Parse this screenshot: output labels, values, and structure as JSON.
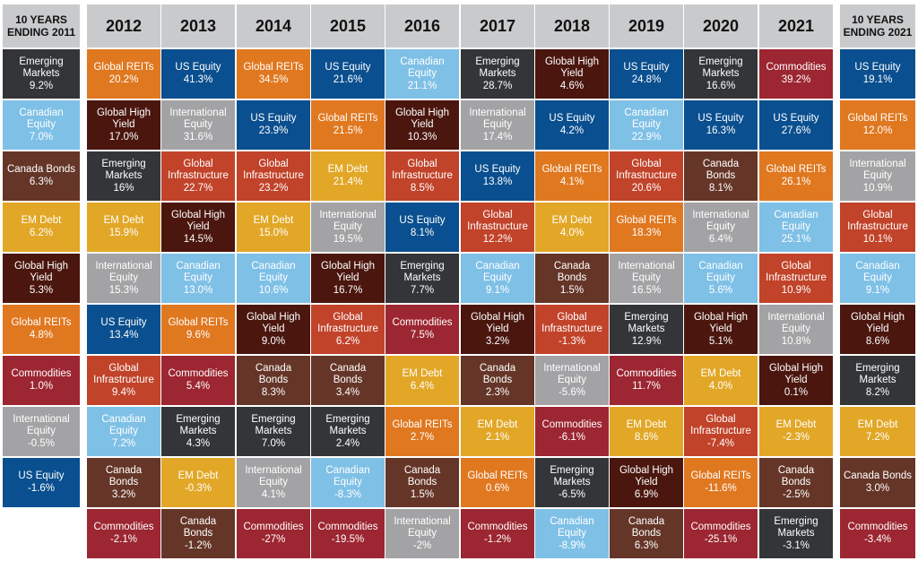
{
  "colors": {
    "Global REITs": "#e07820",
    "US Equity": "#0a4f8f",
    "Canadian Equity": "#7fc0e6",
    "Emerging Markets": "#333538",
    "Global High Yield": "#4a160e",
    "Commodities": "#9c2631",
    "International Equity": "#a3a3a5",
    "Global Infrastructure": "#c1432a",
    "Canada Bonds": "#653628",
    "EM Debt": "#e2a727"
  },
  "chart_data": {
    "type": "table",
    "summary_start": {
      "header": "10 YEARS ENDING 2011",
      "cells": [
        {
          "asset": "Emerging Markets",
          "label": "Emerging Markets",
          "value": "9.2%"
        },
        {
          "asset": "Canadian Equity",
          "label": "Canadian Equity",
          "value": "7.0%"
        },
        {
          "asset": "Canada Bonds",
          "label": "Canada Bonds",
          "value": "6.3%"
        },
        {
          "asset": "EM Debt",
          "label": "EM Debt",
          "value": "6.2%"
        },
        {
          "asset": "Global High Yield",
          "label": "Global High Yield",
          "value": "5.3%"
        },
        {
          "asset": "Global REITs",
          "label": "Global REITs",
          "value": "4.8%"
        },
        {
          "asset": "Commodities",
          "label": "Commodities",
          "value": "1.0%"
        },
        {
          "asset": "International Equity",
          "label": "International Equity",
          "value": "-0.5%"
        },
        {
          "asset": "US Equity",
          "label": "US Equity",
          "value": "-1.6%"
        }
      ]
    },
    "years": [
      {
        "year": "2012",
        "cells": [
          {
            "asset": "Global REITs",
            "label": "Global REITs",
            "value": "20.2%"
          },
          {
            "asset": "Global High Yield",
            "label": "Global High Yield",
            "value": "17.0%"
          },
          {
            "asset": "Emerging Markets",
            "label": "Emerging Markets",
            "value": "16%"
          },
          {
            "asset": "EM Debt",
            "label": "EM Debt",
            "value": "15.9%"
          },
          {
            "asset": "International Equity",
            "label": "International Equity",
            "value": "15.3%"
          },
          {
            "asset": "US Equity",
            "label": "US Equity",
            "value": "13.4%"
          },
          {
            "asset": "Global Infrastructure",
            "label": "Global Infrastructure",
            "value": "9.4%"
          },
          {
            "asset": "Canadian Equity",
            "label": "Canadian Equity",
            "value": "7.2%"
          },
          {
            "asset": "Canada Bonds",
            "label": "Canada Bonds",
            "value": "3.2%"
          },
          {
            "asset": "Commodities",
            "label": "Commodities",
            "value": "-2.1%"
          }
        ]
      },
      {
        "year": "2013",
        "cells": [
          {
            "asset": "US Equity",
            "label": "US Equity",
            "value": "41.3%"
          },
          {
            "asset": "International Equity",
            "label": "International Equity",
            "value": "31.6%"
          },
          {
            "asset": "Global Infrastructure",
            "label": "Global Infrastructure",
            "value": "22.7%"
          },
          {
            "asset": "Global High Yield",
            "label": "Global High Yield",
            "value": "14.5%"
          },
          {
            "asset": "Canadian Equity",
            "label": "Canadian Equity",
            "value": "13.0%"
          },
          {
            "asset": "Global REITs",
            "label": "Global REITs",
            "value": "9.6%"
          },
          {
            "asset": "Commodities",
            "label": "Commodities",
            "value": "5.4%"
          },
          {
            "asset": "Emerging Markets",
            "label": "Emerging Markets",
            "value": "4.3%"
          },
          {
            "asset": "EM Debt",
            "label": "EM Debt",
            "value": "-0.3%"
          },
          {
            "asset": "Canada Bonds",
            "label": "Canada Bonds",
            "value": "-1.2%"
          }
        ]
      },
      {
        "year": "2014",
        "cells": [
          {
            "asset": "Global REITs",
            "label": "Global REITs",
            "value": "34.5%"
          },
          {
            "asset": "US Equity",
            "label": "US Equity",
            "value": "23.9%"
          },
          {
            "asset": "Global Infrastructure",
            "label": "Global Infrastructure",
            "value": "23.2%"
          },
          {
            "asset": "EM Debt",
            "label": "EM Debt",
            "value": "15.0%"
          },
          {
            "asset": "Canadian Equity",
            "label": "Canadian Equity",
            "value": "10.6%"
          },
          {
            "asset": "Global High Yield",
            "label": "Global High Yield",
            "value": "9.0%"
          },
          {
            "asset": "Canada Bonds",
            "label": "Canada Bonds",
            "value": "8.3%"
          },
          {
            "asset": "Emerging Markets",
            "label": "Emerging Markets",
            "value": "7.0%"
          },
          {
            "asset": "International Equity",
            "label": "International Equity",
            "value": "4.1%"
          },
          {
            "asset": "Commodities",
            "label": "Commodities",
            "value": "-27%"
          }
        ]
      },
      {
        "year": "2015",
        "cells": [
          {
            "asset": "US Equity",
            "label": "US Equity",
            "value": "21.6%"
          },
          {
            "asset": "Global REITs",
            "label": "Global REITs",
            "value": "21.5%"
          },
          {
            "asset": "EM Debt",
            "label": "EM Debt",
            "value": "21.4%"
          },
          {
            "asset": "International Equity",
            "label": "International Equity",
            "value": "19.5%"
          },
          {
            "asset": "Global High Yield",
            "label": "Global High Yield",
            "value": "16.7%"
          },
          {
            "asset": "Global Infrastructure",
            "label": "Global Infrastructure",
            "value": "6.2%"
          },
          {
            "asset": "Canada Bonds",
            "label": "Canada Bonds",
            "value": "3.4%"
          },
          {
            "asset": "Emerging Markets",
            "label": "Emerging Markets",
            "value": "2.4%"
          },
          {
            "asset": "Canadian Equity",
            "label": "Canadian Equity",
            "value": "-8.3%"
          },
          {
            "asset": "Commodities",
            "label": "Commodities",
            "value": "-19.5%"
          }
        ]
      },
      {
        "year": "2016",
        "cells": [
          {
            "asset": "Canadian Equity",
            "label": "Canadian Equity",
            "value": "21.1%"
          },
          {
            "asset": "Global High Yield",
            "label": "Global High Yield",
            "value": "10.3%"
          },
          {
            "asset": "Global Infrastructure",
            "label": "Global Infrastructure",
            "value": "8.5%"
          },
          {
            "asset": "US Equity",
            "label": "US Equity",
            "value": "8.1%"
          },
          {
            "asset": "Emerging Markets",
            "label": "Emerging Markets",
            "value": "7.7%"
          },
          {
            "asset": "Commodities",
            "label": "Commodities",
            "value": "7.5%"
          },
          {
            "asset": "EM Debt",
            "label": "EM Debt",
            "value": "6.4%"
          },
          {
            "asset": "Global REITs",
            "label": "Global REITs",
            "value": "2.7%"
          },
          {
            "asset": "Canada Bonds",
            "label": "Canada Bonds",
            "value": "1.5%"
          },
          {
            "asset": "International Equity",
            "label": "International Equity",
            "value": "-2%"
          }
        ]
      },
      {
        "year": "2017",
        "cells": [
          {
            "asset": "Emerging Markets",
            "label": "Emerging Markets",
            "value": "28.7%"
          },
          {
            "asset": "International Equity",
            "label": "International Equity",
            "value": "17.4%"
          },
          {
            "asset": "US Equity",
            "label": "US Equity",
            "value": "13.8%"
          },
          {
            "asset": "Global Infrastructure",
            "label": "Global Infrastructure",
            "value": "12.2%"
          },
          {
            "asset": "Canadian Equity",
            "label": "Canadian Equity",
            "value": "9.1%"
          },
          {
            "asset": "Global High Yield",
            "label": "Global High Yield",
            "value": "3.2%"
          },
          {
            "asset": "Canada Bonds",
            "label": "Canada Bonds",
            "value": "2.3%"
          },
          {
            "asset": "EM Debt",
            "label": "EM Debt",
            "value": "2.1%"
          },
          {
            "asset": "Global REITs",
            "label": "Global REITs",
            "value": "0.6%"
          },
          {
            "asset": "Commodities",
            "label": "Commodities",
            "value": "-1.2%"
          }
        ]
      },
      {
        "year": "2018",
        "cells": [
          {
            "asset": "Global High Yield",
            "label": "Global High Yield",
            "value": "4.6%"
          },
          {
            "asset": "US Equity",
            "label": "US Equity",
            "value": "4.2%"
          },
          {
            "asset": "Global REITs",
            "label": "Global REITs",
            "value": "4.1%"
          },
          {
            "asset": "EM Debt",
            "label": "EM Debt",
            "value": "4.0%"
          },
          {
            "asset": "Canada Bonds",
            "label": "Canada Bonds",
            "value": "1.5%"
          },
          {
            "asset": "Global Infrastructure",
            "label": "Global Infrastructure",
            "value": "-1.3%"
          },
          {
            "asset": "International Equity",
            "label": "International Equity",
            "value": "-5.6%"
          },
          {
            "asset": "Commodities",
            "label": "Commodities",
            "value": "-6.1%"
          },
          {
            "asset": "Emerging Markets",
            "label": "Emerging Markets",
            "value": "-6.5%"
          },
          {
            "asset": "Canadian Equity",
            "label": "Canadian Equity",
            "value": "-8.9%"
          }
        ]
      },
      {
        "year": "2019",
        "cells": [
          {
            "asset": "US Equity",
            "label": "US Equity",
            "value": "24.8%"
          },
          {
            "asset": "Canadian Equity",
            "label": "Canadian Equity",
            "value": "22.9%"
          },
          {
            "asset": "Global Infrastructure",
            "label": "Global Infrastructure",
            "value": "20.6%"
          },
          {
            "asset": "Global REITs",
            "label": "Global REITs",
            "value": "18.3%"
          },
          {
            "asset": "International Equity",
            "label": "International Equity",
            "value": "16.5%"
          },
          {
            "asset": "Emerging Markets",
            "label": "Emerging Markets",
            "value": "12.9%"
          },
          {
            "asset": "Commodities",
            "label": "Commodities",
            "value": "11.7%"
          },
          {
            "asset": "EM Debt",
            "label": "EM Debt",
            "value": "8.6%"
          },
          {
            "asset": "Global High Yield",
            "label": "Global High Yield",
            "value": "6.9%"
          },
          {
            "asset": "Canada Bonds",
            "label": "Canada Bonds",
            "value": "6.3%"
          }
        ]
      },
      {
        "year": "2020",
        "cells": [
          {
            "asset": "Emerging Markets",
            "label": "Emerging Markets",
            "value": "16.6%"
          },
          {
            "asset": "US Equity",
            "label": "US Equity",
            "value": "16.3%"
          },
          {
            "asset": "Canada Bonds",
            "label": "Canada Bonds",
            "value": "8.1%"
          },
          {
            "asset": "International Equity",
            "label": "International Equity",
            "value": "6.4%"
          },
          {
            "asset": "Canadian Equity",
            "label": "Canadian Equity",
            "value": "5.6%"
          },
          {
            "asset": "Global High Yield",
            "label": "Global High Yield",
            "value": "5.1%"
          },
          {
            "asset": "EM Debt",
            "label": "EM Debt",
            "value": "4.0%"
          },
          {
            "asset": "Global Infrastructure",
            "label": "Global Infrastructure",
            "value": "-7.4%"
          },
          {
            "asset": "Global REITs",
            "label": "Global REITs",
            "value": "-11.6%"
          },
          {
            "asset": "Commodities",
            "label": "Commodities",
            "value": "-25.1%"
          }
        ]
      },
      {
        "year": "2021",
        "cells": [
          {
            "asset": "Commodities",
            "label": "Commodities",
            "value": "39.2%"
          },
          {
            "asset": "US Equity",
            "label": "US Equity",
            "value": "27.6%"
          },
          {
            "asset": "Global REITs",
            "label": "Global REITs",
            "value": "26.1%"
          },
          {
            "asset": "Canadian Equity",
            "label": "Canadian Equity",
            "value": "25.1%"
          },
          {
            "asset": "Global Infrastructure",
            "label": "Global Infrastructure",
            "value": "10.9%"
          },
          {
            "asset": "International Equity",
            "label": "International Equity",
            "value": "10.8%"
          },
          {
            "asset": "Global High Yield",
            "label": "Global High Yield",
            "value": "0.1%"
          },
          {
            "asset": "EM Debt",
            "label": "EM Debt",
            "value": "-2.3%"
          },
          {
            "asset": "Canada Bonds",
            "label": "Canada Bonds",
            "value": "-2.5%"
          },
          {
            "asset": "Emerging Markets",
            "label": "Emerging Markets",
            "value": "-3.1%"
          }
        ]
      }
    ],
    "summary_end": {
      "header": "10 YEARS ENDING 2021",
      "cells": [
        {
          "asset": "US Equity",
          "label": "US Equity",
          "value": "19.1%"
        },
        {
          "asset": "Global REITs",
          "label": "Global REITs",
          "value": "12.0%"
        },
        {
          "asset": "International Equity",
          "label": "International Equity",
          "value": "10.9%"
        },
        {
          "asset": "Global Infrastructure",
          "label": "Global Infrastructure",
          "value": "10.1%"
        },
        {
          "asset": "Canadian Equity",
          "label": "Canadian Equity",
          "value": "9.1%"
        },
        {
          "asset": "Global High Yield",
          "label": "Global High Yield",
          "value": "8.6%"
        },
        {
          "asset": "Emerging Markets",
          "label": "Emerging Markets",
          "value": "8.2%"
        },
        {
          "asset": "EM Debt",
          "label": "EM Debt",
          "value": "7.2%"
        },
        {
          "asset": "Canada Bonds",
          "label": "Canada Bonds",
          "value": "3.0%"
        },
        {
          "asset": "Commodities",
          "label": "Commodities",
          "value": "-3.4%"
        }
      ]
    }
  }
}
